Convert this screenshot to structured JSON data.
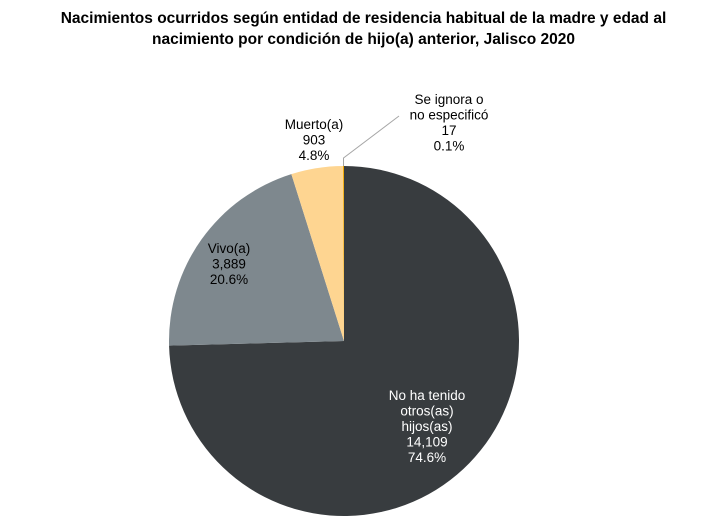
{
  "chart_data": {
    "type": "pie",
    "title_lines": [
      "Nacimientos ocurridos según entidad de residencia habitual de la madre y edad al",
      "nacimiento por condición de hijo(a) anterior, Jalisco 2020"
    ],
    "slices": [
      {
        "name_lines": [
          "No ha tenido",
          "otros(as)",
          "hijos(as)"
        ],
        "value": 14109,
        "value_label": "14,109",
        "percent": 74.6,
        "percent_label": "74.6%",
        "color": "#383c3f"
      },
      {
        "name_lines": [
          "Vivo(a)"
        ],
        "value": 3889,
        "value_label": "3,889",
        "percent": 20.6,
        "percent_label": "20.6%",
        "color": "#7e888e"
      },
      {
        "name_lines": [
          "Muerto(a)"
        ],
        "value": 903,
        "value_label": "903",
        "percent": 4.8,
        "percent_label": "4.8%",
        "color": "#fed591"
      },
      {
        "name_lines": [
          "Se ignora o",
          "no especificó"
        ],
        "value": 17,
        "value_label": "17",
        "percent": 0.1,
        "percent_label": "0.1%",
        "color": "#f2a900"
      }
    ],
    "start": "12 o'clock",
    "direction": "clockwise",
    "legend": "none"
  }
}
